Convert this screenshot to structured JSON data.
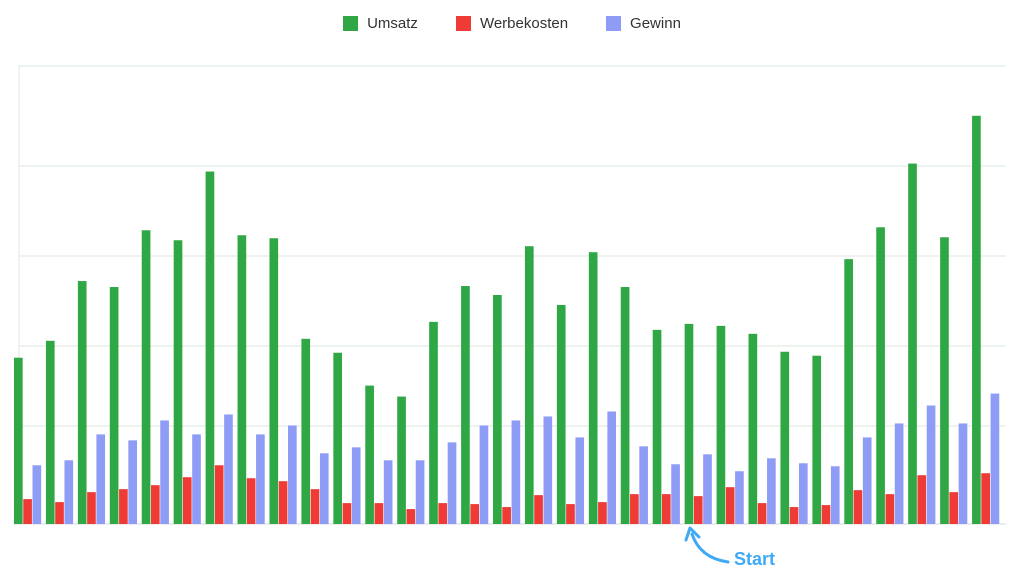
{
  "colors": {
    "umsatz": "#2ea744",
    "werbekosten": "#ef3b36",
    "gewinn": "#8e9cf6",
    "grid": "#dbeadb",
    "annotation": "#3fa9f5"
  },
  "chart_data": {
    "type": "bar",
    "grid": true,
    "legend_position": "top-center",
    "ylim": [
      0,
      46
    ],
    "series": [
      {
        "name": "Umsatz",
        "values": [
          16.7,
          18.4,
          24.4,
          23.8,
          29.5,
          28.5,
          35.4,
          29.0,
          28.7,
          18.6,
          17.2,
          13.9,
          12.8,
          20.3,
          23.9,
          23.0,
          27.9,
          22.0,
          27.3,
          23.8,
          19.5,
          20.1,
          19.9,
          19.1,
          17.3,
          16.9,
          26.6,
          29.8,
          36.2,
          28.8,
          41.0
        ]
      },
      {
        "name": "Werbekosten",
        "values": [
          2.5,
          2.2,
          3.2,
          3.5,
          3.9,
          4.7,
          5.9,
          4.6,
          4.3,
          3.5,
          2.1,
          2.1,
          1.5,
          2.1,
          2.0,
          1.7,
          2.9,
          2.0,
          2.2,
          3.0,
          3.0,
          2.8,
          3.7,
          2.1,
          1.7,
          1.9,
          3.4,
          3.0,
          4.9,
          3.2,
          5.1
        ]
      },
      {
        "name": "Gewinn",
        "values": [
          5.9,
          6.4,
          9.0,
          8.4,
          10.4,
          9.0,
          11.0,
          9.0,
          9.9,
          7.1,
          7.7,
          6.4,
          6.4,
          8.2,
          9.9,
          10.4,
          10.8,
          8.7,
          11.3,
          7.8,
          6.0,
          7.0,
          5.3,
          6.6,
          6.1,
          5.8,
          8.7,
          10.1,
          11.9,
          10.1,
          13.1
        ]
      }
    ],
    "annotation": {
      "text": "Start",
      "index": 21
    }
  }
}
